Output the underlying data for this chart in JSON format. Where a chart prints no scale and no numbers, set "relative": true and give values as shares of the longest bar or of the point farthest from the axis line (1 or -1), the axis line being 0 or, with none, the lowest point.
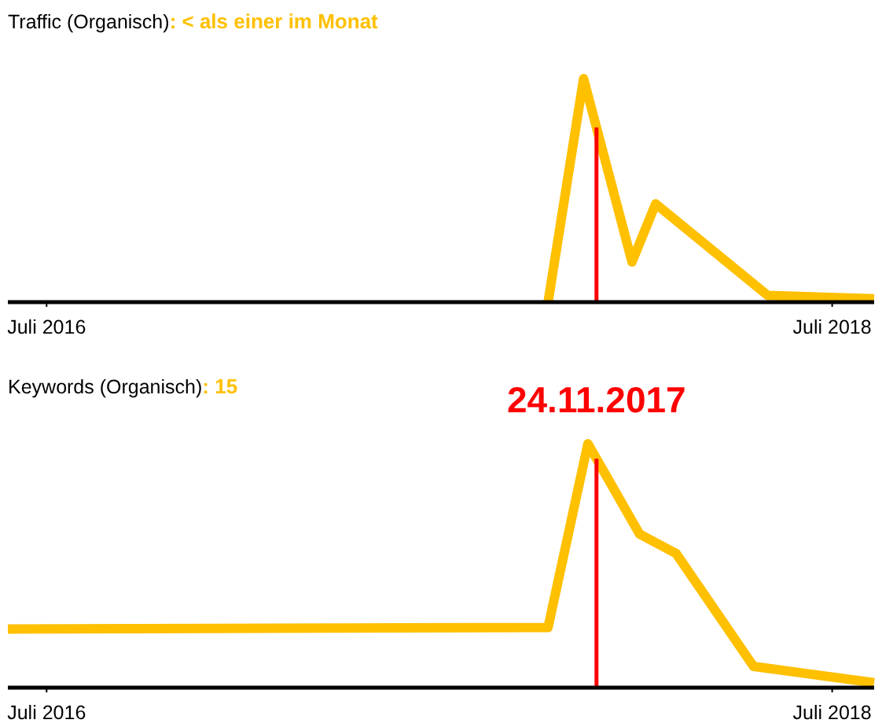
{
  "chart_data": [
    {
      "type": "line",
      "title": "Traffic (Organisch)",
      "subtitle": ": < als einer im Monat",
      "relative": true,
      "x": [
        "2017-10-10",
        "2017-11-12",
        "2017-12-27",
        "2018-01-18",
        "2018-05-02",
        "2018-08-09"
      ],
      "xlim": [
        "2016-05-26",
        "2018-08-09"
      ],
      "xticks": [
        {
          "value": "2016-07-01",
          "label": "Juli 2016"
        },
        {
          "value": "2018-07-01",
          "label": "Juli 2018"
        }
      ],
      "series": [
        {
          "color": "#ffc000",
          "values": [
            0,
            1,
            0.18,
            0.44,
            0.03,
            0.015
          ]
        }
      ],
      "ref_lines": [
        {
          "axis": "x",
          "value": "2017-11-24",
          "color": "#ff0000"
        }
      ]
    },
    {
      "type": "line",
      "title": "Keywords (Organisch)",
      "subtitle": ": 15",
      "relative": true,
      "x": [
        "2016-05-26",
        "2017-10-10",
        "2017-11-16",
        "2018-01-03",
        "2018-02-06",
        "2018-04-19",
        "2018-08-09"
      ],
      "xlim": [
        "2016-05-26",
        "2018-08-09"
      ],
      "xticks": [
        {
          "value": "2016-07-01",
          "label": "Juli 2016"
        },
        {
          "value": "2018-07-01",
          "label": "Juli 2018"
        }
      ],
      "series": [
        {
          "color": "#ffc000",
          "values": [
            0.24,
            0.247,
            1,
            0.63,
            0.55,
            0.087,
            0.02
          ]
        }
      ],
      "ref_lines": [
        {
          "axis": "x",
          "value": "2017-11-24",
          "label": "24.11.2017",
          "color": "#ff0000"
        }
      ]
    }
  ]
}
